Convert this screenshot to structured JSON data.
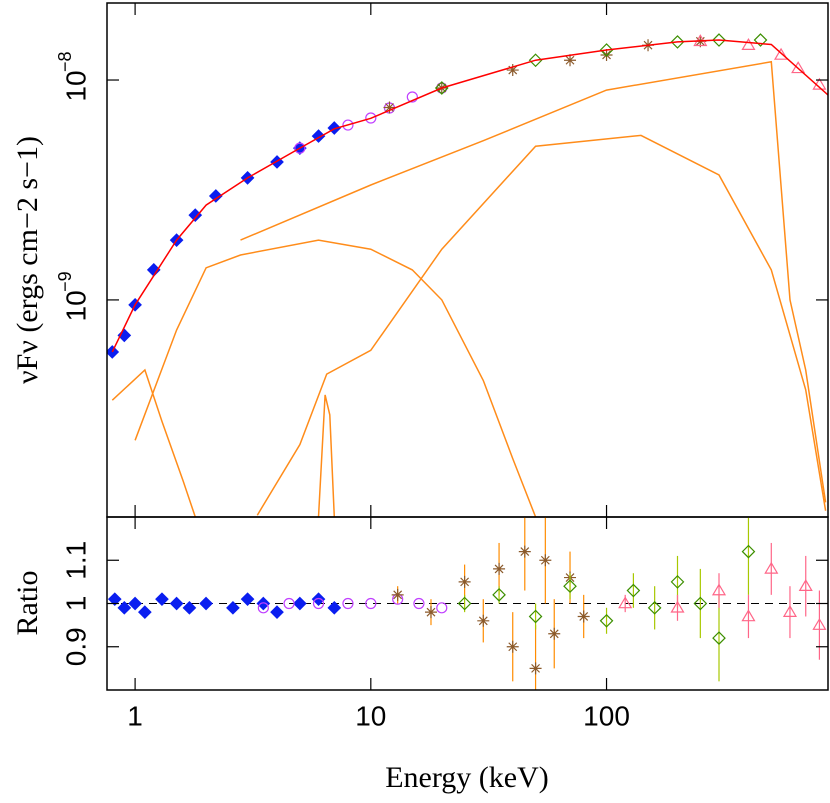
{
  "chart_data": [
    {
      "type": "scatter",
      "y_label": "νFν  (ergs cm−2 s−1)",
      "xscale": "log",
      "yscale": "log",
      "xlim": [
        0.76,
        870
      ],
      "ylim": [
        1.03e-10,
        2.24e-08
      ],
      "yticks": [
        {
          "value": 1e-09,
          "label": "10",
          "exponent": "−9"
        },
        {
          "value": 1e-08,
          "label": "10",
          "exponent": "−8"
        }
      ],
      "series": [
        {
          "style": "line",
          "color": "#ff8c1a",
          "x": [
            0.8,
            1.1,
            1.3,
            1.6,
            1.8
          ],
          "values": [
            3.5e-10,
            4.8e-10,
            2.8e-10,
            1.5e-10,
            1.03e-10
          ]
        },
        {
          "style": "line",
          "color": "#ff8c1a",
          "x": [
            1.0,
            1.5,
            2.0,
            2.8,
            6,
            10,
            15,
            20,
            30,
            40,
            50
          ],
          "values": [
            2.3e-10,
            7.3e-10,
            1.4e-09,
            1.6e-09,
            1.87e-09,
            1.7e-09,
            1.37e-09,
            1e-09,
            4.3e-10,
            1.9e-10,
            1.03e-10
          ]
        },
        {
          "style": "line",
          "color": "#ff8c1a",
          "x": [
            2.8,
            10,
            30,
            100,
            500,
            600,
            700,
            850
          ],
          "values": [
            1.87e-09,
            3.33e-09,
            5.3e-09,
            9e-09,
            1.21e-08,
            1e-09,
            4.8e-10,
            1.2e-10
          ]
        },
        {
          "style": "line",
          "color": "#ff8c1a",
          "x": [
            3.3,
            5,
            6.5,
            10,
            20,
            50,
            140,
            300,
            500,
            700,
            850
          ],
          "values": [
            1.05e-10,
            2.2e-10,
            4.6e-10,
            5.9e-10,
            1.7e-09,
            5e-09,
            5.6e-09,
            3.7e-09,
            1.37e-09,
            3.9e-10,
            1.1e-10
          ]
        },
        {
          "style": "line",
          "color": "#ff8c1a",
          "x": [
            6.0,
            6.4,
            6.7,
            7.0
          ],
          "values": [
            1.03e-10,
            3.7e-10,
            3e-10,
            1.03e-10
          ]
        },
        {
          "style": "marker",
          "marker": "diamond",
          "fill": true,
          "color": "#0a1ef0",
          "x": [
            0.8,
            0.9,
            1.0,
            1.2,
            1.5,
            1.8,
            2.2,
            3,
            4,
            5,
            6,
            7
          ],
          "values": [
            5.8e-10,
            6.9e-10,
            9.5e-10,
            1.37e-09,
            1.87e-09,
            2.43e-09,
            2.97e-09,
            3.59e-09,
            4.24e-09,
            4.9e-09,
            5.56e-09,
            6.05e-09
          ]
        },
        {
          "style": "marker",
          "marker": "circle",
          "color": "#c040ff",
          "x": [
            5,
            8,
            10,
            12,
            15,
            20
          ],
          "values": [
            4.9e-09,
            6.24e-09,
            6.72e-09,
            7.46e-09,
            8.37e-09,
            9.2e-09
          ]
        },
        {
          "style": "marker",
          "marker": "cross",
          "color": "#8b5a2b",
          "x": [
            12,
            20,
            40,
            70,
            100,
            150,
            250
          ],
          "values": [
            7.5e-09,
            9.2e-09,
            1.11e-08,
            1.23e-08,
            1.3e-08,
            1.44e-08,
            1.5e-08
          ]
        },
        {
          "style": "marker",
          "marker": "diamond",
          "color": "#3c8f00",
          "x": [
            20,
            50,
            100,
            200,
            300,
            450
          ],
          "values": [
            9.2e-09,
            1.23e-08,
            1.37e-08,
            1.49e-08,
            1.52e-08,
            1.52e-08
          ]
        },
        {
          "style": "marker",
          "marker": "triangle",
          "color": "#ff6688",
          "x": [
            250,
            400,
            550,
            650,
            800
          ],
          "values": [
            1.5e-08,
            1.44e-08,
            1.3e-08,
            1.13e-08,
            9.5e-09
          ]
        },
        {
          "style": "line",
          "color": "#ff0000",
          "x": [
            0.8,
            1,
            1.5,
            2,
            3,
            5,
            7,
            10,
            20,
            50,
            100,
            200,
            300,
            500,
            870
          ],
          "values": [
            5.8e-10,
            9.5e-10,
            1.87e-09,
            2.7e-09,
            3.59e-09,
            4.9e-09,
            6e-09,
            6.7e-09,
            9.2e-09,
            1.23e-08,
            1.37e-08,
            1.49e-08,
            1.52e-08,
            1.45e-08,
            8.55e-09
          ]
        }
      ]
    },
    {
      "type": "scatter",
      "y_label": "Ratio",
      "x_label": "Energy (keV)",
      "xscale": "log",
      "xlim": [
        0.76,
        870
      ],
      "ylim": [
        0.8,
        1.2
      ],
      "xticks": [
        1,
        10,
        100
      ],
      "yticks": [
        0.9,
        1,
        1.1
      ],
      "reference_line": 1,
      "series": [
        {
          "marker": "diamond",
          "fill": true,
          "color": "#0a1ef0",
          "x": [
            0.82,
            0.9,
            1.0,
            1.1,
            1.3,
            1.5,
            1.7,
            2.0,
            2.6,
            3.0,
            3.5,
            4.0,
            5.0,
            6.0,
            7.0
          ],
          "values": [
            1.01,
            0.99,
            1.0,
            0.98,
            1.01,
            1.0,
            0.99,
            1.0,
            0.99,
            1.01,
            1.0,
            0.98,
            1.0,
            1.01,
            0.99
          ]
        },
        {
          "marker": "circle",
          "color": "#c040ff",
          "x": [
            3.5,
            4.5,
            6,
            8,
            10,
            13,
            16,
            20
          ],
          "values": [
            0.99,
            1.0,
            1.0,
            1.0,
            1.0,
            1.01,
            1.0,
            0.99
          ]
        },
        {
          "marker": "cross",
          "color": "#8b5a2b",
          "error_color": "#ff8c00",
          "x": [
            13,
            18,
            25,
            30,
            35,
            40,
            45,
            50,
            55,
            60,
            70,
            80
          ],
          "values": [
            1.02,
            0.98,
            1.05,
            0.96,
            1.08,
            0.9,
            1.12,
            0.85,
            1.1,
            0.93,
            1.06,
            0.97
          ],
          "errors": [
            0.02,
            0.03,
            0.04,
            0.05,
            0.06,
            0.08,
            0.09,
            0.1,
            0.1,
            0.08,
            0.06,
            0.05
          ]
        },
        {
          "marker": "diamond",
          "color": "#3c8f00",
          "error_color": "#a8c800",
          "x": [
            25,
            35,
            50,
            70,
            100,
            130,
            160,
            200,
            250,
            300,
            400
          ],
          "values": [
            1.0,
            1.02,
            0.97,
            1.04,
            0.96,
            1.03,
            0.99,
            1.05,
            1.0,
            0.92,
            1.12
          ],
          "errors": [
            0.02,
            0.02,
            0.03,
            0.03,
            0.03,
            0.04,
            0.05,
            0.06,
            0.08,
            0.1,
            0.1
          ]
        },
        {
          "marker": "triangle",
          "color": "#ff6688",
          "x": [
            120,
            200,
            300,
            400,
            500,
            600,
            700,
            800
          ],
          "values": [
            1.0,
            0.99,
            1.03,
            0.97,
            1.08,
            0.98,
            1.04,
            0.95
          ],
          "errors": [
            0.02,
            0.03,
            0.04,
            0.05,
            0.06,
            0.06,
            0.07,
            0.08
          ]
        }
      ]
    }
  ]
}
